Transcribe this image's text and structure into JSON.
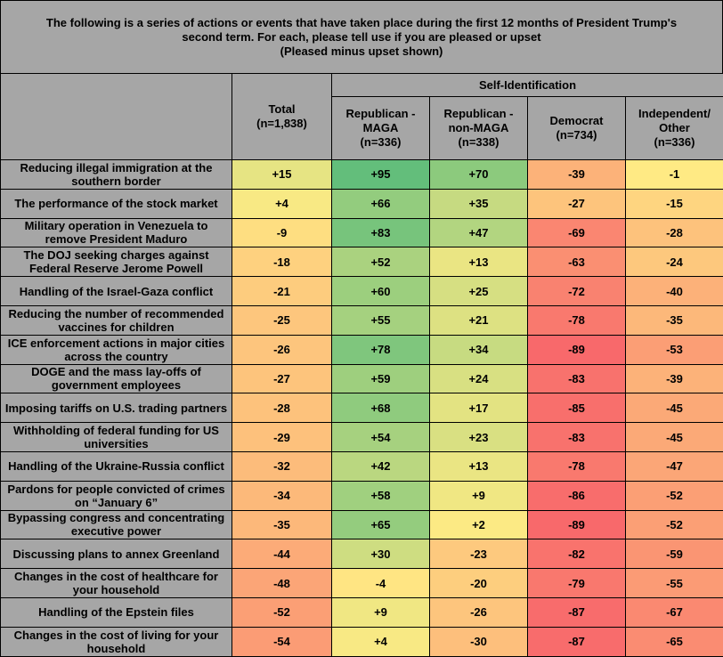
{
  "title": {
    "line1": "The following is a series of actions or events that have taken place during the first 12 months of President Trump's",
    "line2": "second term. For each, please tell use if you are pleased or upset",
    "line3": "(Pleased minus upset shown)"
  },
  "chart_data": {
    "type": "heatmap",
    "group_header": "Self-Identification",
    "columns": [
      {
        "label": "Total",
        "n": "(n=1,838)"
      },
      {
        "label": "Republican - MAGA",
        "n": "(n=336)"
      },
      {
        "label": "Republican - non-MAGA",
        "n": "(n=338)"
      },
      {
        "label": "Democrat",
        "n": "(n=734)"
      },
      {
        "label": "Independent/ Other",
        "n": "(n=336)"
      }
    ],
    "rows": [
      {
        "label": "Reducing illegal immigration at the southern border",
        "values": [
          "+15",
          "+95",
          "+70",
          "-39",
          "-1"
        ]
      },
      {
        "label": "The performance of the stock market",
        "values": [
          "+4",
          "+66",
          "+35",
          "-27",
          "-15"
        ]
      },
      {
        "label": "Military operation in Venezuela to remove President Maduro",
        "values": [
          "-9",
          "+83",
          "+47",
          "-69",
          "-28"
        ]
      },
      {
        "label": "The DOJ seeking charges against Federal Reserve Jerome Powell",
        "values": [
          "-18",
          "+52",
          "+13",
          "-63",
          "-24"
        ]
      },
      {
        "label": "Handling of the Israel-Gaza conflict",
        "values": [
          "-21",
          "+60",
          "+25",
          "-72",
          "-40"
        ]
      },
      {
        "label": "Reducing the number of recommended vaccines for children",
        "values": [
          "-25",
          "+55",
          "+21",
          "-78",
          "-35"
        ]
      },
      {
        "label": "ICE enforcement actions in major cities across the country",
        "values": [
          "-26",
          "+78",
          "+34",
          "-89",
          "-53"
        ]
      },
      {
        "label": "DOGE and the mass lay-offs of government employees",
        "values": [
          "-27",
          "+59",
          "+24",
          "-83",
          "-39"
        ]
      },
      {
        "label": "Imposing tariffs on U.S. trading partners",
        "values": [
          "-28",
          "+68",
          "+17",
          "-85",
          "-45"
        ]
      },
      {
        "label": "Withholding of federal funding for US universities",
        "values": [
          "-29",
          "+54",
          "+23",
          "-83",
          "-45"
        ]
      },
      {
        "label": "Handling of the Ukraine-Russia conflict",
        "values": [
          "-32",
          "+42",
          "+13",
          "-78",
          "-47"
        ]
      },
      {
        "label": "Pardons for people convicted of crimes on “January 6”",
        "values": [
          "-34",
          "+58",
          "+9",
          "-86",
          "-52"
        ]
      },
      {
        "label": "Bypassing congress and concentrating executive power",
        "values": [
          "-35",
          "+65",
          "+2",
          "-89",
          "-52"
        ]
      },
      {
        "label": "Discussing plans to annex Greenland",
        "values": [
          "-44",
          "+30",
          "-23",
          "-82",
          "-59"
        ]
      },
      {
        "label": "Changes in the cost of healthcare for your household",
        "values": [
          "-48",
          "-4",
          "-20",
          "-79",
          "-55"
        ]
      },
      {
        "label": "Handling of the Epstein files",
        "values": [
          "-52",
          "+9",
          "-26",
          "-87",
          "-67"
        ]
      },
      {
        "label": "Changes in the cost of living for your household",
        "values": [
          "-54",
          "+4",
          "-30",
          "-87",
          "-65"
        ]
      }
    ],
    "color_scale": {
      "low": "#f8696b",
      "mid": "#ffeb84",
      "high": "#63be7b",
      "range": [
        -89,
        95
      ],
      "midpoint": 0
    }
  }
}
